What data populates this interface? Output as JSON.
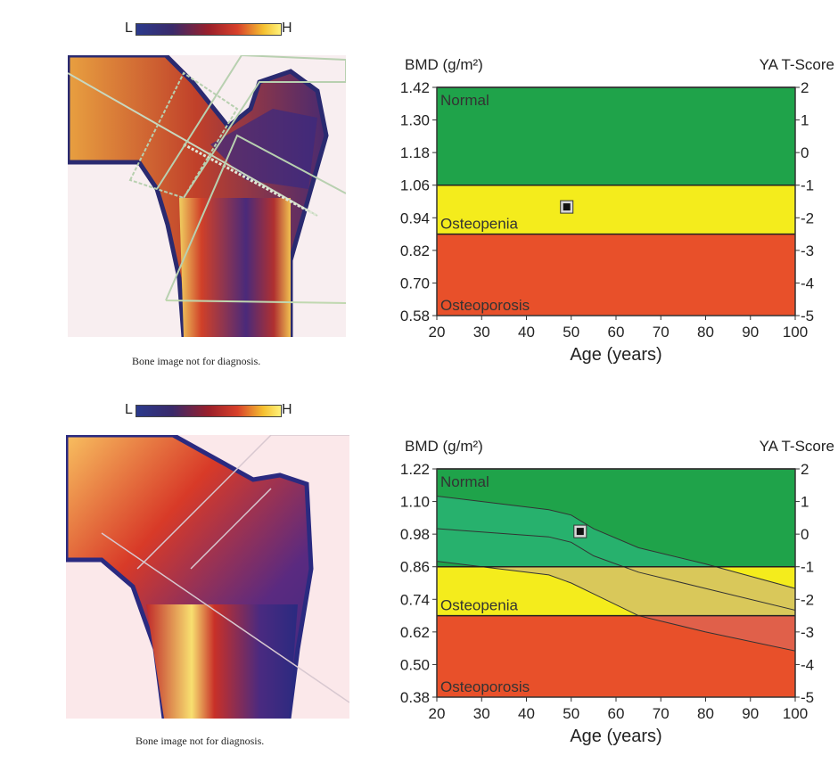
{
  "panels": [
    {
      "colorbar": {
        "low_label": "L",
        "high_label": "H"
      },
      "caption": "Bone image not for diagnosis."
    },
    {
      "colorbar": {
        "low_label": "L",
        "high_label": "H"
      },
      "caption": "Bone image not for diagnosis."
    }
  ],
  "colors": {
    "normal": "#1fa34a",
    "osteopenia": "#f4ec1c",
    "osteoporosis": "#e8502a",
    "band_green": "#2bb57a",
    "band_yellow": "#d9c85a",
    "band_red": "#e0604a"
  },
  "chart_data": [
    {
      "type": "area",
      "ylabel_left": "BMD (g/m²)",
      "ylabel_right": "YA T-Score",
      "xlabel": "Age (years)",
      "x_ticks": [
        "20",
        "30",
        "40",
        "50",
        "60",
        "70",
        "80",
        "90",
        "100"
      ],
      "xlim": [
        20,
        100
      ],
      "y_ticks": [
        "1.42",
        "1.30",
        "1.18",
        "1.06",
        "0.94",
        "0.82",
        "0.70",
        "0.58"
      ],
      "ylim": [
        0.58,
        1.42
      ],
      "t_ticks": [
        "2",
        "1",
        "0",
        "-1",
        "-2",
        "-3",
        "-4",
        "-5"
      ],
      "zones": [
        {
          "name": "Normal",
          "from": 1.06,
          "to": 1.42
        },
        {
          "name": "Osteopenia",
          "from": 0.88,
          "to": 1.06
        },
        {
          "name": "Osteoporosis",
          "from": 0.58,
          "to": 0.88
        }
      ],
      "point": {
        "x": 49,
        "y": 0.98
      }
    },
    {
      "type": "area",
      "ylabel_left": "BMD (g/m²)",
      "ylabel_right": "YA T-Score",
      "xlabel": "Age (years)",
      "x_ticks": [
        "20",
        "30",
        "40",
        "50",
        "60",
        "70",
        "80",
        "90",
        "100"
      ],
      "xlim": [
        20,
        100
      ],
      "y_ticks": [
        "1.22",
        "1.10",
        "0.98",
        "0.86",
        "0.74",
        "0.62",
        "0.50",
        "0.38"
      ],
      "ylim": [
        0.38,
        1.22
      ],
      "t_ticks": [
        "2",
        "1",
        "0",
        "-1",
        "-2",
        "-3",
        "-4",
        "-5"
      ],
      "zones": [
        {
          "name": "Normal",
          "from": 0.86,
          "to": 1.22
        },
        {
          "name": "Osteopenia",
          "from": 0.68,
          "to": 0.86
        },
        {
          "name": "Osteoporosis",
          "from": 0.38,
          "to": 0.68
        }
      ],
      "reference_band": {
        "x": [
          20,
          45,
          50,
          55,
          65,
          80,
          100
        ],
        "upper": [
          1.12,
          1.07,
          1.05,
          1.0,
          0.93,
          0.87,
          0.78
        ],
        "mid": [
          1.0,
          0.97,
          0.95,
          0.9,
          0.84,
          0.78,
          0.7
        ],
        "lower": [
          0.88,
          0.83,
          0.8,
          0.76,
          0.68,
          0.62,
          0.55
        ]
      },
      "point": {
        "x": 52,
        "y": 0.99
      }
    }
  ]
}
